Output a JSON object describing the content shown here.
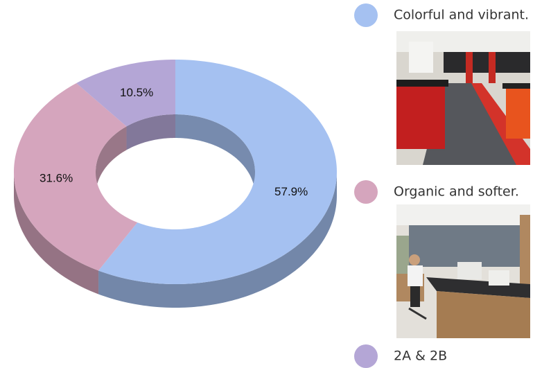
{
  "chart_data": {
    "type": "donut",
    "categories": [
      "Colorful and vibrant.",
      "Organic and softer.",
      "2A & 2B"
    ],
    "values": [
      57.9,
      31.6,
      10.5
    ],
    "value_labels": [
      "57.9%",
      "31.6%",
      "10.5%"
    ],
    "colors": [
      "#a5c1f1",
      "#d5a5bd",
      "#b4a6d6"
    ]
  }
}
